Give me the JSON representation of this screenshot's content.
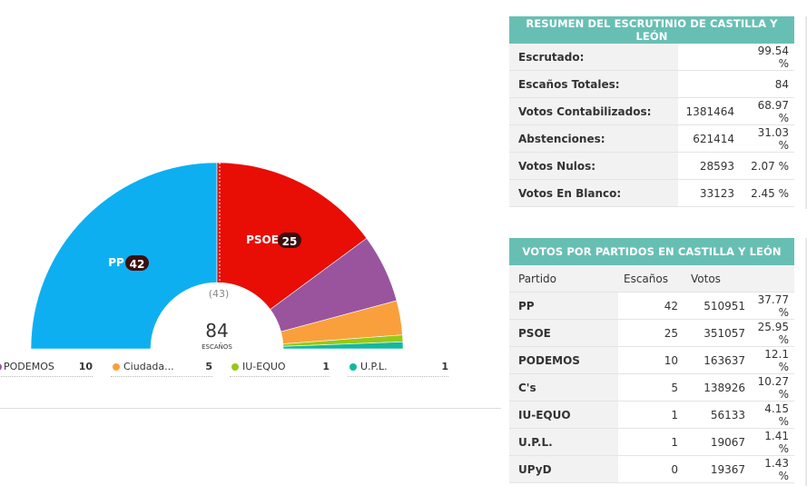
{
  "chart_data": {
    "type": "pie",
    "subtype": "hemicycle",
    "total_seats": 84,
    "total_label": "ESCAÑOS",
    "majority_label": "(43)",
    "series": [
      {
        "name": "PP",
        "seats": 42,
        "color": "#0eaff0",
        "label": "PP",
        "label_value": "42"
      },
      {
        "name": "PSOE",
        "seats": 25,
        "color": "#e80d05",
        "label": "PSOE",
        "label_value": "25"
      },
      {
        "name": "PODEMOS",
        "seats": 10,
        "color": "#9a549d"
      },
      {
        "name": "Ciudadanos",
        "seats": 5,
        "color": "#f9a03c"
      },
      {
        "name": "IU-EQUO",
        "seats": 1,
        "color": "#96c916"
      },
      {
        "name": "U.P.L.",
        "seats": 1,
        "color": "#12b89f"
      }
    ]
  },
  "legend": [
    {
      "name": "PODEMOS",
      "seats": "10",
      "color": "#9a549d"
    },
    {
      "name": "Ciudada...",
      "seats": "5",
      "color": "#f9a03c"
    },
    {
      "name": "IU-EQUO",
      "seats": "1",
      "color": "#96c916"
    },
    {
      "name": "U.P.L.",
      "seats": "1",
      "color": "#12b89f"
    }
  ],
  "summary": {
    "title": "RESUMEN DEL ESCRUTINIO DE CASTILLA Y LEÓN",
    "rows": [
      {
        "label": "Escrutado:",
        "value": "",
        "pct": "99.54 %"
      },
      {
        "label": "Escaños Totales:",
        "value": "",
        "pct": "84"
      },
      {
        "label": "Votos Contabilizados:",
        "value": "1381464",
        "pct": "68.97 %"
      },
      {
        "label": "Abstenciones:",
        "value": "621414",
        "pct": "31.03 %"
      },
      {
        "label": "Votos Nulos:",
        "value": "28593",
        "pct": "2.07 %"
      },
      {
        "label": "Votos En Blanco:",
        "value": "33123",
        "pct": "2.45 %"
      }
    ]
  },
  "parties": {
    "title": "VOTOS POR PARTIDOS EN CASTILLA Y LEÓN",
    "headers": {
      "party": "Partido",
      "seats": "Escaños",
      "votes": "Votos"
    },
    "rows": [
      {
        "party": "PP",
        "seats": "42",
        "votes": "510951",
        "pct": "37.77 %"
      },
      {
        "party": "PSOE",
        "seats": "25",
        "votes": "351057",
        "pct": "25.95 %"
      },
      {
        "party": "PODEMOS",
        "seats": "10",
        "votes": "163637",
        "pct": "12.1 %"
      },
      {
        "party": "C's",
        "seats": "5",
        "votes": "138926",
        "pct": "10.27 %"
      },
      {
        "party": "IU-EQUO",
        "seats": "1",
        "votes": "56133",
        "pct": "4.15 %"
      },
      {
        "party": "U.P.L.",
        "seats": "1",
        "votes": "19067",
        "pct": "1.41 %"
      },
      {
        "party": "UPyD",
        "seats": "0",
        "votes": "19367",
        "pct": "1.43 %"
      }
    ]
  }
}
